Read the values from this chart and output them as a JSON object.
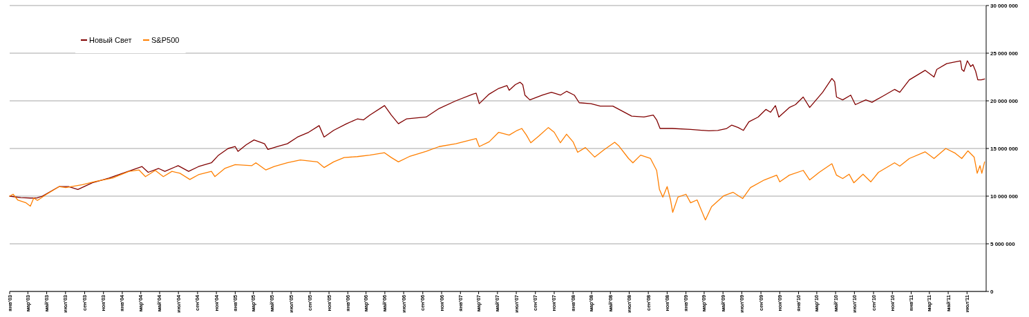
{
  "chart_data": {
    "type": "line",
    "legend": "top left",
    "grid": "y",
    "xlim": [
      "2003-01-01",
      "2011-09-01"
    ],
    "xticks": [
      {
        "value": "2003-01",
        "label": "янв'03"
      },
      {
        "value": "2003-03",
        "label": "мар'03"
      },
      {
        "value": "2003-05",
        "label": "май'03"
      },
      {
        "value": "2003-07",
        "label": "июл'03"
      },
      {
        "value": "2003-09",
        "label": "сен'03"
      },
      {
        "value": "2003-11",
        "label": "ноя'03"
      },
      {
        "value": "2004-01",
        "label": "янв'04"
      },
      {
        "value": "2004-03",
        "label": "мар'04"
      },
      {
        "value": "2004-05",
        "label": "май'04"
      },
      {
        "value": "2004-07",
        "label": "июл'04"
      },
      {
        "value": "2004-09",
        "label": "сен'04"
      },
      {
        "value": "2004-11",
        "label": "ноя'04"
      },
      {
        "value": "2005-01",
        "label": "янв'05"
      },
      {
        "value": "2005-03",
        "label": "мар'05"
      },
      {
        "value": "2005-05",
        "label": "май'05"
      },
      {
        "value": "2005-07",
        "label": "июл'05"
      },
      {
        "value": "2005-09",
        "label": "сен'05"
      },
      {
        "value": "2005-11",
        "label": "ноя'05"
      },
      {
        "value": "2006-01",
        "label": "янв'06"
      },
      {
        "value": "2006-03",
        "label": "мар'06"
      },
      {
        "value": "2006-05",
        "label": "май'06"
      },
      {
        "value": "2006-07",
        "label": "июл'06"
      },
      {
        "value": "2006-09",
        "label": "сен'06"
      },
      {
        "value": "2006-11",
        "label": "ноя'06"
      },
      {
        "value": "2007-01",
        "label": "янв'07"
      },
      {
        "value": "2007-03",
        "label": "мар'07"
      },
      {
        "value": "2007-05",
        "label": "май'07"
      },
      {
        "value": "2007-07",
        "label": "июл'07"
      },
      {
        "value": "2007-09",
        "label": "сен'07"
      },
      {
        "value": "2007-11",
        "label": "ноя'07"
      },
      {
        "value": "2008-01",
        "label": "янв'08"
      },
      {
        "value": "2008-03",
        "label": "мар'08"
      },
      {
        "value": "2008-05",
        "label": "май'08"
      },
      {
        "value": "2008-07",
        "label": "июл'08"
      },
      {
        "value": "2008-09",
        "label": "сен'08"
      },
      {
        "value": "2008-11",
        "label": "ноя'08"
      },
      {
        "value": "2009-01",
        "label": "янв'09"
      },
      {
        "value": "2009-03",
        "label": "мар'09"
      },
      {
        "value": "2009-05",
        "label": "май'09"
      },
      {
        "value": "2009-07",
        "label": "июл'09"
      },
      {
        "value": "2009-09",
        "label": "сен'09"
      },
      {
        "value": "2009-11",
        "label": "ноя'09"
      },
      {
        "value": "2010-01",
        "label": "янв'10"
      },
      {
        "value": "2010-03",
        "label": "мар'10"
      },
      {
        "value": "2010-05",
        "label": "май'10"
      },
      {
        "value": "2010-07",
        "label": "июл'10"
      },
      {
        "value": "2010-09",
        "label": "сен'10"
      },
      {
        "value": "2010-11",
        "label": "ноя'10"
      },
      {
        "value": "2011-01",
        "label": "янв'11"
      },
      {
        "value": "2011-03",
        "label": "мар'11"
      },
      {
        "value": "2011-05",
        "label": "май'11"
      },
      {
        "value": "2011-07",
        "label": "июл'11"
      }
    ],
    "ylim": [
      0,
      30000000
    ],
    "yticks": [
      0,
      {
        "value": 5000000,
        "label": "5 000 000"
      },
      {
        "value": 10000000,
        "label": "10 000 000"
      },
      {
        "value": 15000000,
        "label": "15 000 000"
      },
      {
        "value": 20000000,
        "label": "20 000 000"
      },
      {
        "value": 25000000,
        "label": "25 000 000"
      },
      {
        "value": 30000000,
        "label": "30 000 000"
      }
    ],
    "series": [
      {
        "name": "Новый Свет",
        "color": "#800000",
        "x": [
          "2003-01-01",
          "2003-02-06",
          "2003-03-09",
          "2003-04-01",
          "2003-04-17",
          "2003-06-10",
          "2003-07-11",
          "2003-08-10",
          "2003-09-26",
          "2003-11-19",
          "2004-02-02",
          "2004-03-05",
          "2004-03-25",
          "2004-04-28",
          "2004-05-18",
          "2004-06-30",
          "2004-08-03",
          "2004-09-04",
          "2004-10-16",
          "2004-11-08",
          "2004-12-09",
          "2005-01-01",
          "2005-01-10",
          "2005-02-06",
          "2005-03-03",
          "2005-04-06",
          "2005-04-17",
          "2005-05-18",
          "2005-06-19",
          "2005-07-22",
          "2005-08-27",
          "2005-09-30",
          "2005-10-16",
          "2005-11-16",
          "2005-12-28",
          "2006-02-01",
          "2006-02-21",
          "2006-03-13",
          "2006-04-30",
          "2006-05-22",
          "2006-06-14",
          "2006-07-10",
          "2006-09-12",
          "2006-10-24",
          "2006-12-17",
          "2007-02-10",
          "2007-02-21",
          "2007-03-03",
          "2007-04-04",
          "2007-05-05",
          "2007-06-01",
          "2007-06-08",
          "2007-06-28",
          "2007-07-13",
          "2007-07-22",
          "2007-07-29",
          "2007-08-14",
          "2007-09-24",
          "2007-10-23",
          "2007-11-21",
          "2007-12-11",
          "2008-01-05",
          "2008-01-21",
          "2008-02-28",
          "2008-03-29",
          "2008-05-09",
          "2008-05-29",
          "2008-07-09",
          "2008-08-18",
          "2008-09-17",
          "2008-09-28",
          "2008-10-09",
          "2008-11-17",
          "2009-01-16",
          "2009-03-16",
          "2009-04-14",
          "2009-05-13",
          "2009-05-29",
          "2009-06-19",
          "2009-07-06",
          "2009-07-24",
          "2009-08-23",
          "2009-09-17",
          "2009-10-02",
          "2009-10-18",
          "2009-10-29",
          "2009-12-02",
          "2009-12-22",
          "2010-01-16",
          "2010-02-06",
          "2010-02-27",
          "2010-03-20",
          "2010-04-19",
          "2010-04-28",
          "2010-05-04",
          "2010-05-24",
          "2010-06-19",
          "2010-07-04",
          "2010-08-07",
          "2010-08-27",
          "2010-10-07",
          "2010-11-08",
          "2010-11-25",
          "2010-12-26",
          "2011-02-15",
          "2011-03-16",
          "2011-03-25",
          "2011-04-26",
          "2011-05-18",
          "2011-06-10",
          "2011-06-14",
          "2011-06-21",
          "2011-07-02",
          "2011-07-13",
          "2011-07-20",
          "2011-07-29",
          "2011-08-05",
          "2011-08-16",
          "2011-08-27"
        ],
        "values": [
          10000000,
          9850000,
          9800000,
          9820000,
          10000000,
          11000000,
          11000000,
          10700000,
          11400000,
          11900000,
          12750000,
          13100000,
          12500000,
          12900000,
          12600000,
          13200000,
          12600000,
          13100000,
          13500000,
          14300000,
          15000000,
          15200000,
          14700000,
          15400000,
          15900000,
          15500000,
          14900000,
          15200000,
          15500000,
          16200000,
          16700000,
          17400000,
          16200000,
          16900000,
          17600000,
          18100000,
          18000000,
          18500000,
          19500000,
          18500000,
          17600000,
          18100000,
          18300000,
          19200000,
          20000000,
          20700000,
          20800000,
          19700000,
          20700000,
          21300000,
          21600000,
          21100000,
          21700000,
          21950000,
          21700000,
          20600000,
          20100000,
          20600000,
          20900000,
          20600000,
          21000000,
          20600000,
          19800000,
          19700000,
          19450000,
          19450000,
          19100000,
          18400000,
          18300000,
          18500000,
          18000000,
          17100000,
          17100000,
          17000000,
          16850000,
          16900000,
          17100000,
          17450000,
          17200000,
          16900000,
          17800000,
          18300000,
          19100000,
          18800000,
          19500000,
          18300000,
          19300000,
          19600000,
          20400000,
          19300000,
          20100000,
          20900000,
          22350000,
          22000000,
          20400000,
          20100000,
          20600000,
          19600000,
          20100000,
          19850000,
          20600000,
          21200000,
          20900000,
          22200000,
          23200000,
          22500000,
          23300000,
          23900000,
          24050000,
          24200000,
          23300000,
          23100000,
          24200000,
          23600000,
          23800000,
          23100000,
          22200000,
          22200000,
          22300000
        ]
      },
      {
        "name": "S&P500",
        "color": "#ff7f00",
        "x": [
          "2003-01-01",
          "2003-01-12",
          "2003-01-27",
          "2003-02-23",
          "2003-03-09",
          "2003-03-20",
          "2003-04-01",
          "2003-04-28",
          "2003-06-10",
          "2003-07-02",
          "2003-08-25",
          "2003-10-07",
          "2003-11-30",
          "2004-01-23",
          "2004-02-24",
          "2004-03-16",
          "2004-04-17",
          "2004-05-13",
          "2004-06-10",
          "2004-07-06",
          "2004-08-07",
          "2004-09-04",
          "2004-10-16",
          "2004-10-27",
          "2004-11-28",
          "2005-01-01",
          "2005-02-24",
          "2005-03-09",
          "2005-04-10",
          "2005-05-07",
          "2005-06-19",
          "2005-07-31",
          "2005-09-24",
          "2005-10-16",
          "2005-11-16",
          "2005-12-20",
          "2006-02-01",
          "2006-03-13",
          "2006-04-30",
          "2006-05-22",
          "2006-06-14",
          "2006-07-19",
          "2006-09-12",
          "2006-10-24",
          "2006-12-17",
          "2007-02-21",
          "2007-03-03",
          "2007-04-04",
          "2007-05-05",
          "2007-06-08",
          "2007-07-04",
          "2007-07-19",
          "2007-08-03",
          "2007-08-17",
          "2007-09-12",
          "2007-10-13",
          "2007-11-01",
          "2007-11-21",
          "2007-12-11",
          "2008-01-01",
          "2008-01-16",
          "2008-02-10",
          "2008-03-11",
          "2008-04-10",
          "2008-05-15",
          "2008-05-29",
          "2008-06-29",
          "2008-07-13",
          "2008-08-07",
          "2008-09-08",
          "2008-09-28",
          "2008-10-07",
          "2008-10-18",
          "2008-11-01",
          "2008-11-12",
          "2008-11-19",
          "2008-12-06",
          "2009-01-01",
          "2009-01-16",
          "2009-02-06",
          "2009-03-05",
          "2009-03-25",
          "2009-05-04",
          "2009-06-03",
          "2009-07-04",
          "2009-07-29",
          "2009-09-12",
          "2009-10-22",
          "2009-11-01",
          "2009-12-02",
          "2010-01-16",
          "2010-02-06",
          "2010-03-09",
          "2010-04-19",
          "2010-05-04",
          "2010-05-24",
          "2010-06-14",
          "2010-06-29",
          "2010-07-29",
          "2010-08-23",
          "2010-09-17",
          "2010-11-08",
          "2010-11-25",
          "2010-12-26",
          "2011-02-15",
          "2011-03-16",
          "2011-04-23",
          "2011-05-24",
          "2011-06-14",
          "2011-07-04",
          "2011-07-24",
          "2011-08-03",
          "2011-08-12",
          "2011-08-18",
          "2011-08-27"
        ],
        "values": [
          10000000,
          10200000,
          9600000,
          9300000,
          8950000,
          9800000,
          9550000,
          10150000,
          11000000,
          10900000,
          11200000,
          11550000,
          11900000,
          12600000,
          12750000,
          12050000,
          12700000,
          12050000,
          12600000,
          12400000,
          11750000,
          12250000,
          12600000,
          12050000,
          12900000,
          13300000,
          13200000,
          13500000,
          12750000,
          13100000,
          13500000,
          13800000,
          13600000,
          13000000,
          13600000,
          14050000,
          14150000,
          14300000,
          14550000,
          14050000,
          13600000,
          14150000,
          14700000,
          15200000,
          15500000,
          16050000,
          15200000,
          15700000,
          16700000,
          16400000,
          16900000,
          17100000,
          16400000,
          15600000,
          16300000,
          17200000,
          16700000,
          15600000,
          16500000,
          15700000,
          14600000,
          15100000,
          14100000,
          14850000,
          15650000,
          15250000,
          13950000,
          13500000,
          14300000,
          13950000,
          12700000,
          10700000,
          9900000,
          11000000,
          9600000,
          8300000,
          9900000,
          10200000,
          9300000,
          9600000,
          7500000,
          8900000,
          10050000,
          10400000,
          9750000,
          10900000,
          11700000,
          12200000,
          11500000,
          12200000,
          12700000,
          11700000,
          12500000,
          13400000,
          12200000,
          11850000,
          12300000,
          11400000,
          12300000,
          11500000,
          12500000,
          13500000,
          13150000,
          13950000,
          14650000,
          13950000,
          15000000,
          14500000,
          13950000,
          14750000,
          14100000,
          12400000,
          13200000,
          12400000,
          13600000
        ]
      }
    ]
  }
}
